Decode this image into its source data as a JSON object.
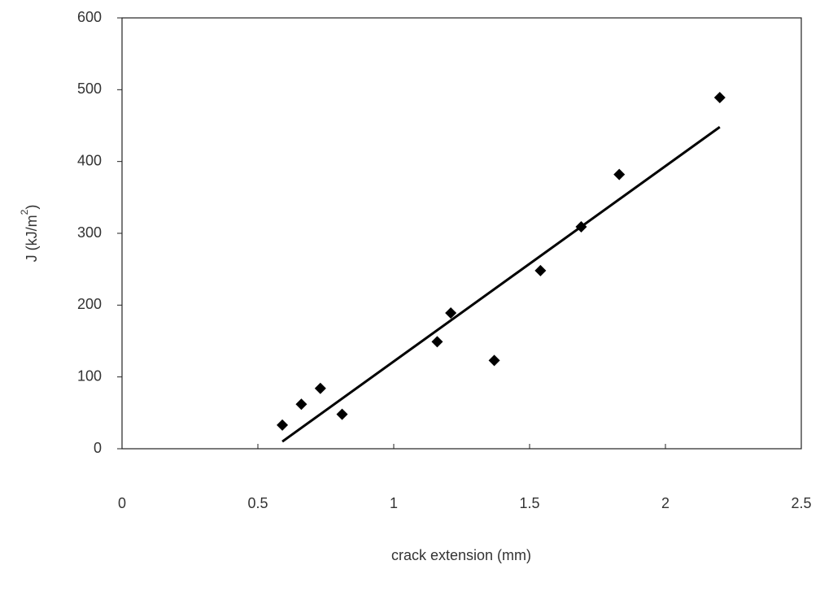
{
  "chart_data": {
    "type": "scatter",
    "x_label": "crack extension (mm)",
    "y_label": [
      "J (kJ/m",
      "2",
      ")"
    ],
    "x": [
      0.59,
      0.66,
      0.73,
      0.81,
      1.16,
      1.21,
      1.37,
      1.54,
      1.69,
      1.83,
      2.2
    ],
    "values": [
      33,
      62,
      84,
      48,
      149,
      189,
      123,
      248,
      309,
      382,
      489
    ],
    "color": "#000000",
    "trendline": {
      "x": [
        0.59,
        2.2
      ],
      "values": [
        10,
        448
      ],
      "color": "#000000"
    },
    "xlim": [
      0,
      2.5
    ],
    "xticks": [
      0,
      0.5,
      1,
      1.5,
      2,
      2.5
    ],
    "ylim": [
      0,
      600
    ],
    "yticks": [
      0,
      100,
      200,
      300,
      400,
      500,
      600
    ]
  }
}
